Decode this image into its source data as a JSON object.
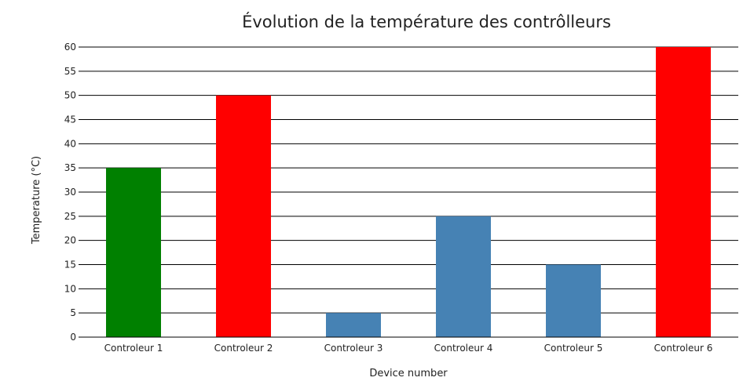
{
  "chart_data": {
    "type": "bar",
    "title": "Évolution de la température des contrôlleurs",
    "xlabel": "Device number",
    "ylabel": "Temperature (°C)",
    "categories": [
      "Controleur 1",
      "Controleur 2",
      "Controleur 3",
      "Controleur 4",
      "Controleur 5",
      "Controleur 6"
    ],
    "values": [
      35,
      50,
      5,
      25,
      15,
      60
    ],
    "colors": [
      "#008000",
      "#ff0000",
      "#4682b4",
      "#4682b4",
      "#4682b4",
      "#ff0000"
    ],
    "ylim": [
      0,
      60
    ],
    "yticks": [
      0,
      5,
      10,
      15,
      20,
      25,
      30,
      35,
      40,
      45,
      50,
      55,
      60
    ],
    "grid": true,
    "legend": "none"
  }
}
